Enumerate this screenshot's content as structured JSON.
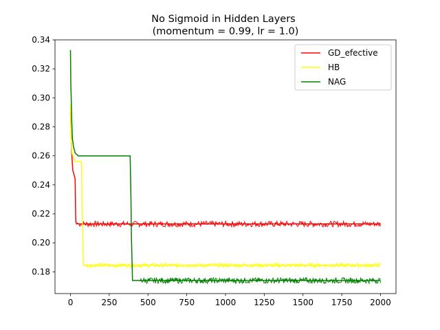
{
  "chart_data": {
    "type": "line",
    "title": "No Sigmoid in Hidden Layers",
    "subtitle": "(momentum = 0.99, lr = 1.0)",
    "xlabel": "",
    "ylabel": "",
    "xlim": [
      -100,
      2100
    ],
    "ylim": [
      0.165,
      0.34
    ],
    "xticks": [
      0,
      250,
      500,
      750,
      1000,
      1250,
      1500,
      1750,
      2000
    ],
    "yticks": [
      0.18,
      0.2,
      0.22,
      0.24,
      0.26,
      0.28,
      0.3,
      0.32,
      0.34
    ],
    "grid": false,
    "legend_position": "top-right",
    "series": [
      {
        "name": "GD_efective",
        "color": "#ff0000",
        "x": [
          0,
          3,
          8,
          15,
          20,
          25,
          30,
          33,
          35,
          40,
          45,
          50,
          2000
        ],
        "y": [
          0.29,
          0.28,
          0.262,
          0.25,
          0.248,
          0.246,
          0.244,
          0.22,
          0.214,
          0.213,
          0.2135,
          0.213,
          0.213
        ],
        "noise_band": [
          0.211,
          0.215
        ]
      },
      {
        "name": "HB",
        "color": "#ffff00",
        "x": [
          0,
          5,
          10,
          20,
          30,
          50,
          70,
          82,
          85,
          100,
          2000
        ],
        "y": [
          0.295,
          0.27,
          0.262,
          0.258,
          0.256,
          0.256,
          0.256,
          0.19,
          0.1845,
          0.1845,
          0.1845
        ],
        "noise_band": [
          0.183,
          0.186
        ]
      },
      {
        "name": "NAG",
        "color": "#008000",
        "x": [
          0,
          2,
          5,
          8,
          12,
          20,
          30,
          50,
          100,
          200,
          300,
          385,
          390,
          393,
          400,
          450,
          2000
        ],
        "y": [
          0.333,
          0.31,
          0.298,
          0.285,
          0.272,
          0.266,
          0.262,
          0.26,
          0.26,
          0.26,
          0.26,
          0.26,
          0.23,
          0.206,
          0.174,
          0.174,
          0.174
        ],
        "noise_band": [
          0.172,
          0.176
        ]
      }
    ]
  }
}
